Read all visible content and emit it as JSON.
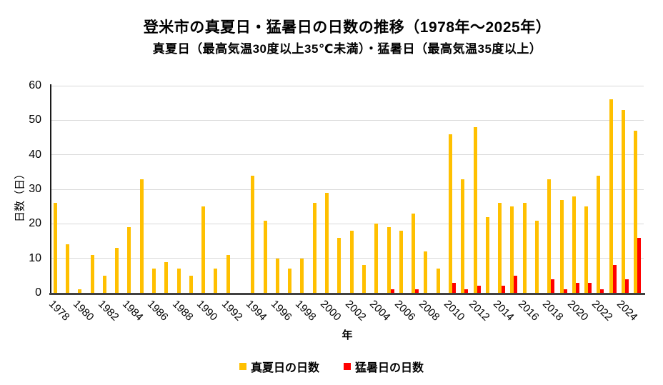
{
  "chart_data": {
    "type": "bar",
    "title": "登米市の真夏日・猛暑日の日数の推移（1978年～2025年）",
    "subtitle": "真夏日（最高気温30度以上35℃未満）・猛暑日（最高気温35度以上）",
    "xlabel": "年",
    "ylabel": "日数（日）",
    "ylim": [
      0,
      60
    ],
    "ytick_step": 10,
    "grid": true,
    "legend_position": "bottom",
    "categories": [
      1978,
      1979,
      1980,
      1981,
      1982,
      1983,
      1984,
      1985,
      1986,
      1987,
      1988,
      1989,
      1990,
      1991,
      1992,
      1993,
      1994,
      1995,
      1996,
      1997,
      1998,
      1999,
      2000,
      2001,
      2002,
      2003,
      2004,
      2005,
      2006,
      2007,
      2008,
      2009,
      2010,
      2011,
      2012,
      2013,
      2014,
      2015,
      2016,
      2017,
      2018,
      2019,
      2020,
      2021,
      2022,
      2023,
      2024,
      2025
    ],
    "xtick_labels": [
      "1978",
      "1980",
      "1982",
      "1984",
      "1986",
      "1988",
      "1990",
      "1992",
      "1994",
      "1996",
      "1998",
      "2000",
      "2002",
      "2004",
      "2006",
      "2008",
      "2010",
      "2012",
      "2014",
      "2016",
      "2018",
      "2020",
      "2022",
      "2024"
    ],
    "series": [
      {
        "name": "真夏日の日数",
        "color": "#FFC000",
        "values": [
          26,
          14,
          1,
          11,
          5,
          13,
          19,
          33,
          7,
          9,
          7,
          5,
          25,
          7,
          11,
          0,
          34,
          21,
          10,
          7,
          10,
          26,
          29,
          16,
          18,
          8,
          20,
          19,
          18,
          23,
          12,
          7,
          46,
          33,
          48,
          22,
          26,
          25,
          26,
          21,
          33,
          27,
          28,
          25,
          34,
          56,
          53,
          47
        ]
      },
      {
        "name": "猛暑日の日数",
        "color": "#FF0000",
        "values": [
          0,
          0,
          0,
          0,
          0,
          0,
          0,
          0,
          0,
          0,
          0,
          0,
          0,
          0,
          0,
          0,
          0,
          0,
          0,
          0,
          0,
          0,
          0,
          0,
          0,
          0,
          0,
          1,
          0,
          1,
          0,
          0,
          3,
          1,
          2,
          0,
          2,
          5,
          0,
          0,
          4,
          1,
          3,
          3,
          1,
          8,
          4,
          16
        ]
      }
    ]
  },
  "colors": {
    "grid": "#d9d9d9",
    "y_axis": "#1a1a1a",
    "x_axis": "#404040",
    "text": "#000000"
  }
}
